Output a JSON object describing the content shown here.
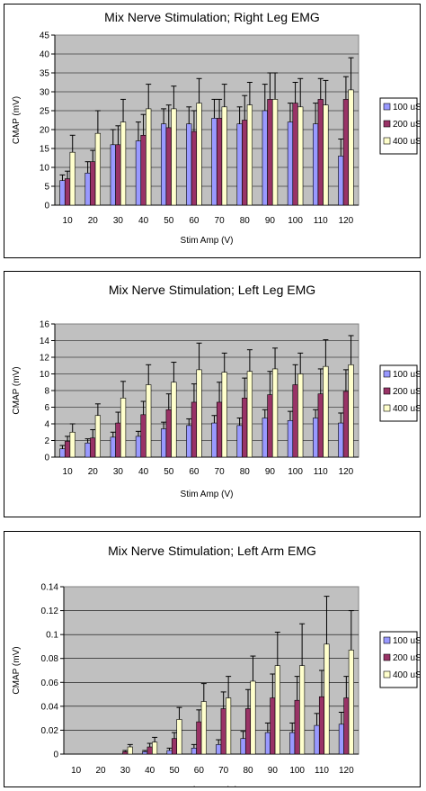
{
  "legend_colors": [
    "#9999ff",
    "#993366",
    "#ffffcc"
  ],
  "plot_background": "#c0c0c0",
  "chart_data": [
    {
      "type": "bar",
      "title": "Mix Nerve Stimulation; Right Leg EMG",
      "xlabel": "Stim Amp (V)",
      "ylabel": "CMAP (mV)",
      "ylim": [
        0,
        45
      ],
      "yticks": [
        "0",
        "5",
        "10",
        "15",
        "20",
        "25",
        "30",
        "35",
        "40",
        "45"
      ],
      "categories": [
        "10",
        "20",
        "30",
        "40",
        "50",
        "60",
        "70",
        "80",
        "90",
        "100",
        "110",
        "120"
      ],
      "series": [
        {
          "name": "100 uS",
          "values": [
            6.5,
            8.5,
            16,
            17,
            21.5,
            21.5,
            23,
            21.5,
            25,
            22,
            21.5,
            13
          ],
          "errors": [
            1.5,
            3,
            4,
            5,
            4,
            4.5,
            5,
            4.5,
            7,
            5,
            5.5,
            4.5
          ]
        },
        {
          "name": "200 uS",
          "values": [
            7,
            11.5,
            16,
            18.5,
            20.5,
            19.5,
            23,
            22.5,
            28,
            27,
            28,
            28
          ],
          "errors": [
            2,
            3,
            5,
            5.5,
            6,
            5.5,
            5,
            6.5,
            7,
            5.5,
            5.5,
            6
          ]
        },
        {
          "name": "400 uS",
          "values": [
            14,
            19,
            22,
            25.5,
            25.5,
            27,
            26,
            26.5,
            28,
            26,
            26.5,
            30.5
          ],
          "errors": [
            4.5,
            6,
            6,
            6.5,
            6,
            6.5,
            6,
            6,
            7,
            7.5,
            6.5,
            8.5
          ]
        }
      ]
    },
    {
      "type": "bar",
      "title": "Mix Nerve Stimulation; Left Leg EMG",
      "xlabel": "Stim Amp (V)",
      "ylabel": "CMAP (mV)",
      "ylim": [
        0,
        16
      ],
      "yticks": [
        "0",
        "2",
        "4",
        "6",
        "8",
        "10",
        "12",
        "14",
        "16"
      ],
      "categories": [
        "10",
        "20",
        "30",
        "40",
        "50",
        "60",
        "70",
        "80",
        "90",
        "100",
        "110",
        "120"
      ],
      "series": [
        {
          "name": "100 uS",
          "values": [
            1,
            1.7,
            2.4,
            2.5,
            3.4,
            3.8,
            4.1,
            3.8,
            4.7,
            4.4,
            4.7,
            4.1
          ],
          "errors": [
            0.4,
            0.5,
            0.6,
            0.6,
            0.8,
            0.8,
            0.9,
            0.9,
            1.0,
            1.1,
            1.0,
            1.2
          ]
        },
        {
          "name": "200 uS",
          "values": [
            1.9,
            2.3,
            4.1,
            5.1,
            5.7,
            6.6,
            6.6,
            7.1,
            7.5,
            8.7,
            7.6,
            7.9
          ],
          "errors": [
            0.6,
            1.0,
            1.3,
            1.6,
            1.9,
            2.2,
            2.4,
            2.4,
            2.8,
            2.4,
            3.0,
            2.6
          ]
        },
        {
          "name": "400 uS",
          "values": [
            3.0,
            5.0,
            7.1,
            8.7,
            9.0,
            10.5,
            10.2,
            10.3,
            10.6,
            10.0,
            10.9,
            11.1
          ],
          "errors": [
            1.0,
            1.4,
            2.0,
            2.4,
            2.4,
            3.2,
            2.3,
            2.6,
            2.5,
            2.5,
            3.2,
            3.5
          ]
        }
      ]
    },
    {
      "type": "bar",
      "title": "Mix Nerve Stimulation; Left Arm EMG",
      "xlabel": "Stim Amp (V)",
      "ylabel": "CMAP (mV)",
      "ylim": [
        0,
        0.14
      ],
      "yticks": [
        "0",
        "0.02",
        "0.04",
        "0.06",
        "0.08",
        "0.1",
        "0.12",
        "0.14"
      ],
      "categories": [
        "10",
        "20",
        "30",
        "40",
        "50",
        "60",
        "70",
        "80",
        "90",
        "100",
        "110",
        "120"
      ],
      "series": [
        {
          "name": "100 uS",
          "values": [
            0,
            0,
            0,
            0.002,
            0.003,
            0.005,
            0.008,
            0.013,
            0.018,
            0.018,
            0.024,
            0.025
          ],
          "errors": [
            0,
            0,
            0,
            0.001,
            0.002,
            0.003,
            0.004,
            0.006,
            0.008,
            0.008,
            0.01,
            0.01
          ]
        },
        {
          "name": "200 uS",
          "values": [
            0,
            0,
            0.002,
            0.006,
            0.013,
            0.027,
            0.038,
            0.038,
            0.047,
            0.045,
            0.048,
            0.047
          ],
          "errors": [
            0,
            0,
            0.001,
            0.003,
            0.005,
            0.01,
            0.014,
            0.016,
            0.02,
            0.02,
            0.022,
            0.018
          ]
        },
        {
          "name": "400 uS",
          "values": [
            0,
            0,
            0.006,
            0.01,
            0.029,
            0.044,
            0.047,
            0.061,
            0.074,
            0.074,
            0.092,
            0.087
          ],
          "errors": [
            0,
            0,
            0.002,
            0.004,
            0.01,
            0.015,
            0.018,
            0.021,
            0.028,
            0.035,
            0.04,
            0.033
          ]
        }
      ]
    }
  ]
}
